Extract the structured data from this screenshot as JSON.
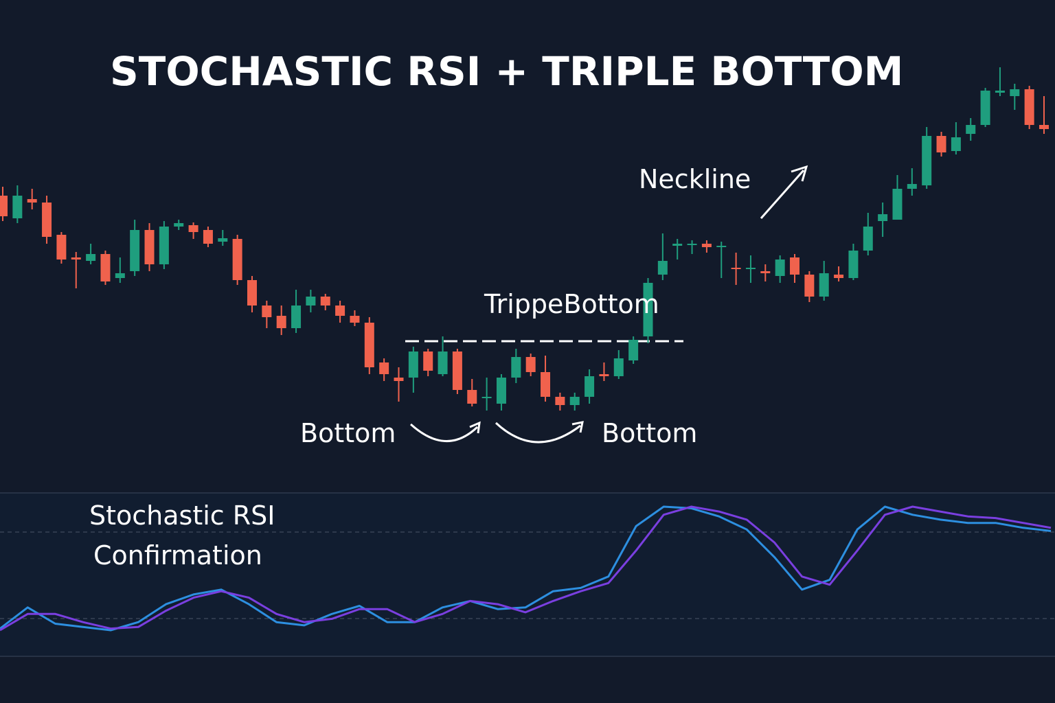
{
  "chart_data": [
    {
      "type": "candlestick",
      "title": "STOCHASTIC RSI + TRIPLE BOTTOM",
      "annotations": [
        "Neckline",
        "TrippeBottom",
        "Bottom",
        "Bottom"
      ],
      "up_color": "#1f9e7e",
      "down_color": "#f0624d",
      "open": [
        71.5,
        68.2,
        71,
        70.5,
        65.8,
        62.5,
        62,
        63,
        59.5,
        60.5,
        66.5,
        61.5,
        67,
        67.2,
        66.5,
        64.8,
        65.2,
        59.2,
        55.5,
        54,
        52.2,
        55.5,
        56.8,
        55.5,
        54,
        53,
        47.2,
        45,
        45,
        48.8,
        45.5,
        48.8,
        43.2,
        42,
        41.2,
        45,
        48,
        45.8,
        42.2,
        41,
        42.2,
        45.5,
        45.2,
        47.5,
        51,
        60,
        64.2,
        64.5,
        64.5,
        64.2,
        61,
        60.8,
        60.5,
        59.8,
        62.5,
        60,
        56.8,
        60,
        59.5,
        63.5,
        67.8,
        68,
        72.5,
        73,
        80.2,
        78,
        80.5,
        81.8,
        86.5,
        86,
        87,
        81.8
      ],
      "high": [
        72.8,
        73,
        72.5,
        71.5,
        66.2,
        63.3,
        64.5,
        63.5,
        62.5,
        68,
        67.5,
        67.8,
        68,
        67.6,
        67,
        66.5,
        65.8,
        59.8,
        56.2,
        55.5,
        57.8,
        57.8,
        57.2,
        56.2,
        54.8,
        53.8,
        47.8,
        46.5,
        49.5,
        49.2,
        51,
        49.2,
        44.8,
        45,
        45.5,
        49.2,
        48.5,
        48.2,
        42.8,
        42.8,
        46.2,
        47.2,
        49,
        51,
        59.5,
        66,
        65.2,
        65,
        65,
        64.8,
        63.2,
        62.8,
        61.5,
        62.8,
        63,
        60.5,
        62,
        61.2,
        64.5,
        69,
        70.5,
        74.5,
        75.5,
        81.5,
        80.8,
        82.2,
        82.8,
        87.2,
        90.2,
        87.8,
        87.5,
        86
      ],
      "low": [
        67.8,
        67.5,
        69.5,
        64.5,
        61.6,
        58,
        61.5,
        58.5,
        58.8,
        59.8,
        60.5,
        60.8,
        66.5,
        65.2,
        64,
        64.2,
        58.5,
        54.5,
        52.2,
        51.2,
        51.5,
        54.5,
        54.8,
        53,
        52.5,
        45.5,
        44.5,
        41.5,
        42.8,
        45.2,
        45.2,
        42.6,
        40.8,
        40.2,
        40.2,
        44.2,
        45.2,
        41.5,
        40.2,
        40.2,
        41.2,
        44.5,
        44.8,
        47,
        50,
        59.2,
        62.2,
        63,
        63.2,
        59.5,
        58.5,
        58.8,
        59,
        58.8,
        58.8,
        56,
        56.2,
        59,
        59.2,
        62.8,
        65.5,
        68,
        71.5,
        72.5,
        77.2,
        77.5,
        79.5,
        81.5,
        86,
        84,
        81.2,
        80.5
      ],
      "close": [
        68.5,
        71.5,
        70.5,
        65.5,
        62.2,
        62.2,
        63,
        59,
        60.2,
        66.5,
        61.5,
        67,
        67.5,
        66.2,
        64.5,
        65.3,
        59.2,
        55.5,
        53.8,
        52.2,
        55.5,
        56.8,
        55.5,
        54,
        53,
        46.5,
        45.5,
        44.5,
        48.8,
        46,
        48.8,
        43.2,
        41.2,
        42.2,
        45,
        48,
        45.8,
        42.2,
        41,
        42.2,
        45.2,
        45.2,
        47.8,
        50.5,
        58.8,
        62,
        64.5,
        64.5,
        64,
        64.2,
        60.8,
        61,
        60.2,
        62.2,
        60,
        56.8,
        60.2,
        59.5,
        63.5,
        67,
        68.8,
        72.5,
        73.2,
        80.2,
        77.8,
        80,
        81.8,
        86.8,
        86.8,
        87,
        81.8,
        81.2
      ]
    },
    {
      "type": "line",
      "title": "Stochastic RSI",
      "subtitle": "Confirmation",
      "series": [
        {
          "color": "#2d8fe0",
          "values": [
            17,
            30,
            20,
            18,
            16,
            21,
            32,
            38,
            41,
            32,
            21,
            19,
            26,
            31,
            21,
            21,
            30,
            34,
            29,
            30,
            40,
            42,
            49,
            80,
            92,
            91,
            86,
            78,
            61,
            41,
            47,
            78,
            92,
            87,
            84,
            82,
            82,
            79,
            77
          ]
        },
        {
          "color": "#7a3fe0",
          "values": [
            16,
            26,
            26,
            21,
            17,
            18,
            28,
            36,
            40,
            36,
            26,
            21,
            23,
            29,
            29,
            21,
            26,
            34,
            32,
            27,
            34,
            40,
            45,
            65,
            87,
            92,
            89,
            84,
            70,
            49,
            44,
            65,
            87,
            92,
            89,
            86,
            85,
            82,
            79
          ]
        }
      ]
    }
  ]
}
